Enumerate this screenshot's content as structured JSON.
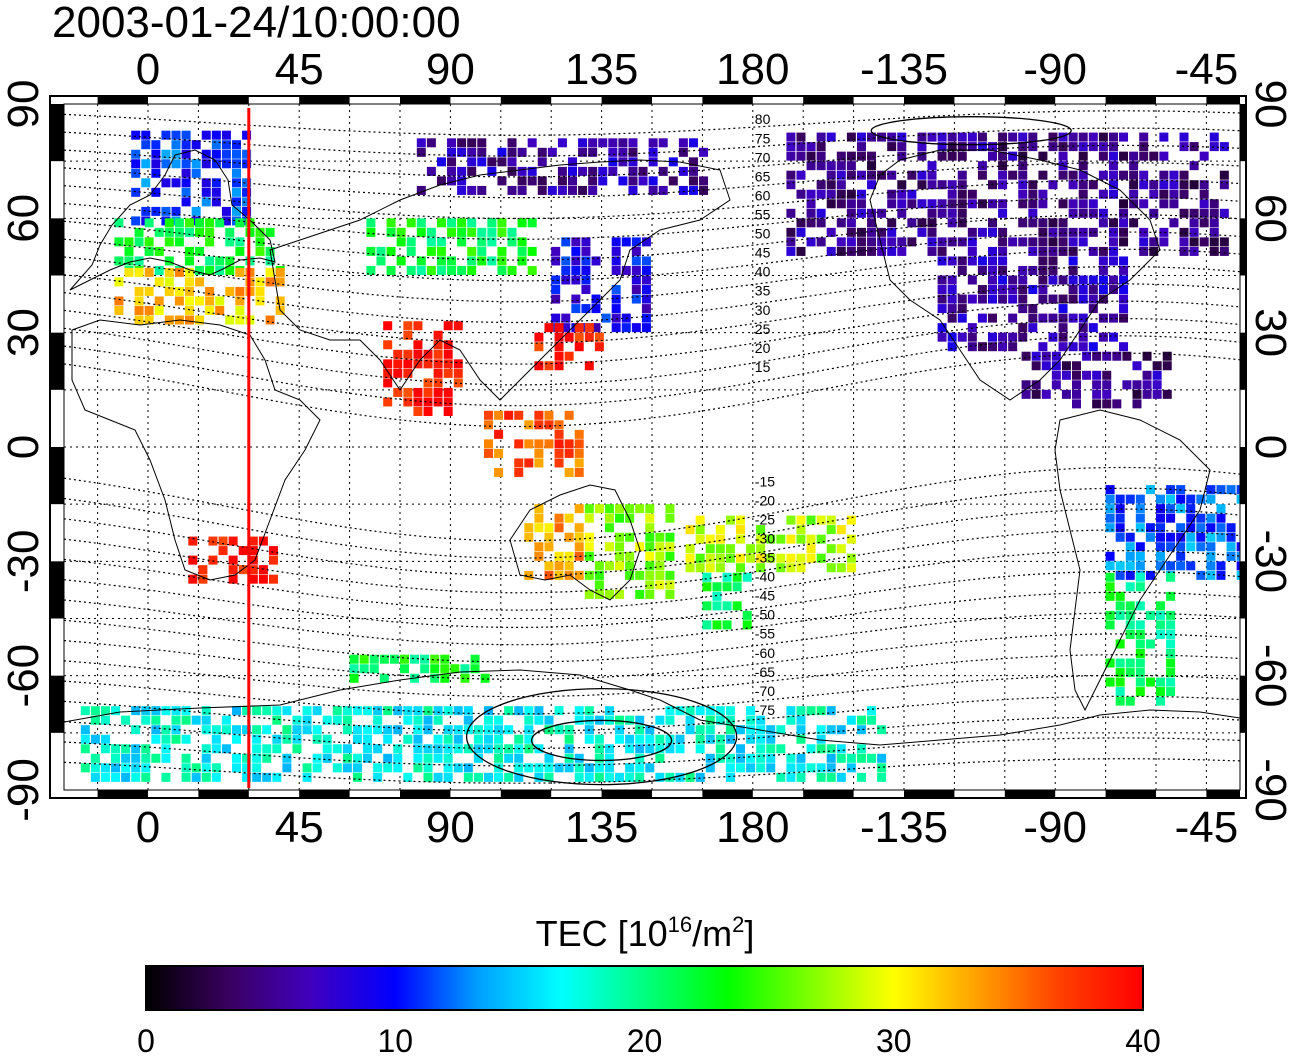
{
  "title": "2003-01-24/10:00:00",
  "map": {
    "x_ticks": [
      "0",
      "45",
      "90",
      "135",
      "180",
      "-135",
      "-90",
      "-45"
    ],
    "y_ticks": [
      "90",
      "60",
      "30",
      "0",
      "-30",
      "-60",
      "-90"
    ],
    "marker_meridian_lon": 30,
    "marker_color": "#ff0000",
    "contour_labels": [
      "80",
      "75",
      "70",
      "65",
      "60",
      "55",
      "50",
      "45",
      "40",
      "35",
      "30",
      "25",
      "20",
      "15",
      "-15",
      "-20",
      "-25",
      "-30",
      "-35",
      "-40",
      "-45",
      "-50",
      "-55",
      "-60",
      "-65",
      "-70",
      "-75"
    ]
  },
  "colorbar": {
    "title_main": "TEC  [10",
    "title_sup1": "16",
    "title_mid": "/m",
    "title_sup2": "2",
    "title_end": "]",
    "ticks": [
      "0",
      "10",
      "20",
      "30",
      "40"
    ],
    "range": [
      0,
      40
    ],
    "colors": [
      "#000000",
      "#3a0060",
      "#4000c0",
      "#0000ff",
      "#00a0ff",
      "#00ffff",
      "#00ff80",
      "#00ff00",
      "#80ff00",
      "#ffff00",
      "#ffa000",
      "#ff4000",
      "#ff0000"
    ]
  },
  "tec_regions": [
    {
      "name": "europe-north",
      "lon": [
        -5,
        30
      ],
      "lat": [
        58,
        82
      ],
      "tec": 11
    },
    {
      "name": "europe-mid",
      "lon": [
        -10,
        40
      ],
      "lat": [
        45,
        60
      ],
      "tec": 22
    },
    {
      "name": "europe-south",
      "lon": [
        -10,
        40
      ],
      "lat": [
        32,
        45
      ],
      "tec": 32
    },
    {
      "name": "southern-africa",
      "lon": [
        12,
        37
      ],
      "lat": [
        -36,
        -24
      ],
      "tec": 39
    },
    {
      "name": "india",
      "lon": [
        70,
        92
      ],
      "lat": [
        8,
        33
      ],
      "tec": 39
    },
    {
      "name": "asia-mid",
      "lon": [
        65,
        115
      ],
      "lat": [
        45,
        58
      ],
      "tec": 22
    },
    {
      "name": "japan-north",
      "lon": [
        120,
        150
      ],
      "lat": [
        30,
        55
      ],
      "tec": 9
    },
    {
      "name": "china-south",
      "lon": [
        115,
        135
      ],
      "lat": [
        20,
        32
      ],
      "tec": 39
    },
    {
      "name": "indonesia",
      "lon": [
        100,
        130
      ],
      "lat": [
        -8,
        8
      ],
      "tec": 36
    },
    {
      "name": "australia-west",
      "lon": [
        112,
        130
      ],
      "lat": [
        -35,
        -15
      ],
      "tec": 33
    },
    {
      "name": "australia-east",
      "lon": [
        130,
        155
      ],
      "lat": [
        -40,
        -15
      ],
      "tec": 27
    },
    {
      "name": "new-zealand",
      "lon": [
        165,
        180
      ],
      "lat": [
        -48,
        -34
      ],
      "tec": 21
    },
    {
      "name": "pacific-south",
      "lon": [
        160,
        210
      ],
      "lat": [
        -33,
        -18
      ],
      "tec": 28
    },
    {
      "name": "siberia",
      "lon": [
        80,
        165
      ],
      "lat": [
        66,
        80
      ],
      "tec": 6
    },
    {
      "name": "alaska-canada",
      "lon": [
        -170,
        -40
      ],
      "lat": [
        50,
        82
      ],
      "tec": 5
    },
    {
      "name": "usa",
      "lon": [
        -125,
        -70
      ],
      "lat": [
        25,
        50
      ],
      "tec": 6
    },
    {
      "name": "caribbean",
      "lon": [
        -100,
        -55
      ],
      "lat": [
        10,
        25
      ],
      "tec": 5
    },
    {
      "name": "south-america-north",
      "lon": [
        -75,
        -35
      ],
      "lat": [
        -35,
        -10
      ],
      "tec": 12
    },
    {
      "name": "south-america-south",
      "lon": [
        -75,
        -55
      ],
      "lat": [
        -68,
        -35
      ],
      "tec": 21
    },
    {
      "name": "antarctica",
      "lon": [
        -20,
        220
      ],
      "lat": [
        -88,
        -70
      ],
      "tec": 17
    },
    {
      "name": "southern-ocean",
      "lon": [
        60,
        100
      ],
      "lat": [
        -62,
        -55
      ],
      "tec": 22
    }
  ]
}
